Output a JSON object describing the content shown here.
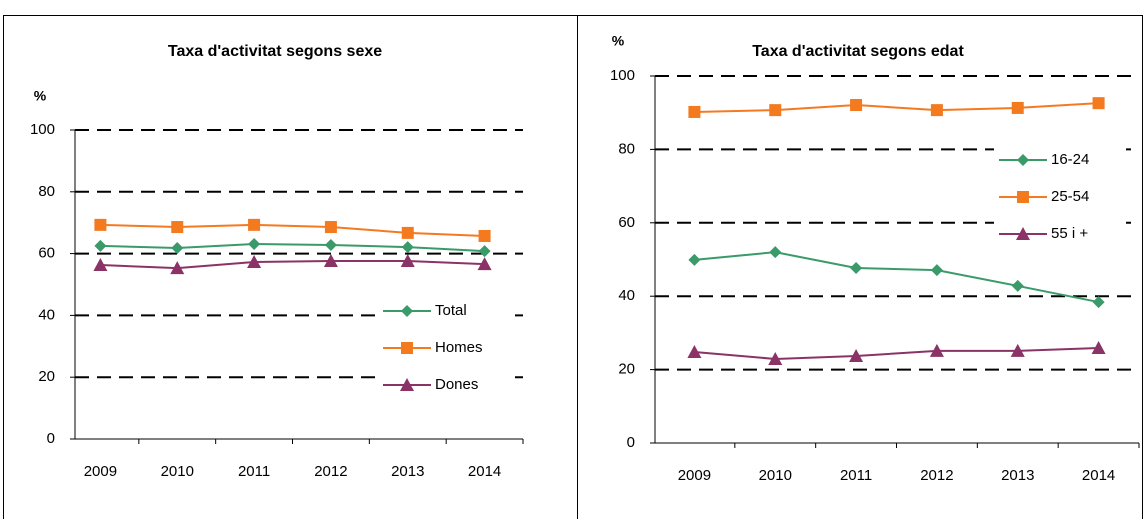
{
  "chart_data": [
    {
      "type": "line",
      "title": "Taxa d'activitat segons sexe",
      "ylabel": "%",
      "categories": [
        "2009",
        "2010",
        "2011",
        "2012",
        "2013",
        "2014"
      ],
      "series": [
        {
          "name": "Total",
          "color": "#3a9a6a",
          "marker": "diamond",
          "values": [
            62.5,
            61.8,
            63.1,
            62.8,
            62.1,
            60.8
          ]
        },
        {
          "name": "Homes",
          "color": "#f47a20",
          "marker": "square",
          "values": [
            69.3,
            68.6,
            69.3,
            68.6,
            66.7,
            65.7
          ]
        },
        {
          "name": "Dones",
          "color": "#8b3366",
          "marker": "triangle",
          "values": [
            56.3,
            55.3,
            57.3,
            57.6,
            57.6,
            56.6
          ]
        }
      ],
      "ylim": [
        0,
        100
      ],
      "yticks": [
        0,
        20,
        40,
        60,
        80,
        100
      ],
      "grid": true,
      "legend": "lower right"
    },
    {
      "type": "line",
      "title": "Taxa d'activitat segons edat",
      "ylabel": "%",
      "categories": [
        "2009",
        "2010",
        "2011",
        "2012",
        "2013",
        "2014"
      ],
      "series": [
        {
          "name": "16-24",
          "color": "#3a9a6a",
          "marker": "diamond",
          "values": [
            49.9,
            52.0,
            47.7,
            47.1,
            42.8,
            38.4
          ]
        },
        {
          "name": "25-54",
          "color": "#f47a20",
          "marker": "square",
          "values": [
            90.2,
            90.7,
            92.1,
            90.7,
            91.3,
            92.6
          ]
        },
        {
          "name": "55 i +",
          "color": "#8b3366",
          "marker": "triangle",
          "values": [
            24.8,
            22.9,
            23.7,
            25.1,
            25.1,
            25.9
          ]
        }
      ],
      "ylim": [
        0,
        100
      ],
      "yticks": [
        0,
        20,
        40,
        60,
        80,
        100
      ],
      "grid": true,
      "legend": "right"
    }
  ]
}
